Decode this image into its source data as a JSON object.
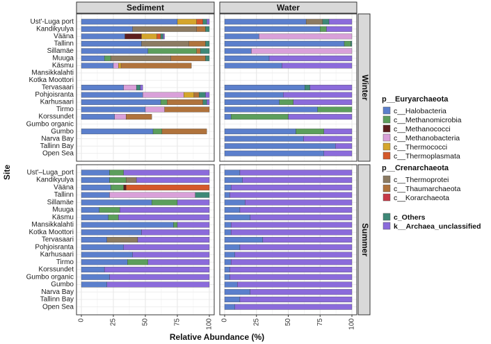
{
  "chart_data": {
    "type": "bar",
    "orientation": "horizontal",
    "stacked": true,
    "ylabel": "Site",
    "xlabel": "Relative Abundance (%)",
    "xlim": [
      0,
      100
    ],
    "xticks": [
      "0",
      "25",
      "50",
      "75",
      "100"
    ],
    "columns": [
      "Sediment",
      "Water"
    ],
    "rows": [
      "Winter",
      "Summer"
    ],
    "sites": [
      "Ust'-Luga port",
      "Kandikyulya",
      "Vääna",
      "Tallinn",
      "Sillamäe",
      "Muuga",
      "Käsmu",
      "Mansikkalahti",
      "Kotka Moottori",
      "Tervasaari",
      "Pohjoisranta",
      "Karhusaari",
      "Tirmo",
      "Korssundet",
      "Gumbo organic",
      "Gumbo",
      "Narva Bay",
      "Tallinn Bay",
      "Open Sea"
    ],
    "site_labels_summer_first": "Ust'–Luga_port",
    "taxa": [
      "Halobacteria",
      "Methanomicrobia",
      "Methanococci",
      "Methanobacteria",
      "Thermococci",
      "Thermoplasmata",
      "Thermoprotei",
      "Thaumarchaeota",
      "Korarchaeota",
      "Others",
      "Archaea_unclassified"
    ],
    "colors": [
      "#5B7FCC",
      "#5C9E5C",
      "#5E1E1E",
      "#D9A0D9",
      "#D4A52C",
      "#D4582A",
      "#8C7B62",
      "#B0733C",
      "#C83A48",
      "#3E8877",
      "#8B6BDB"
    ],
    "legend_groups": [
      {
        "title": "p__Euryarchaeota",
        "items": [
          {
            "label": "c__Halobacteria",
            "color_index": 0
          },
          {
            "label": "c__Methanomicrobia",
            "color_index": 1
          },
          {
            "label": "c__Methanococci",
            "color_index": 2
          },
          {
            "label": "c__Methanobacteria",
            "color_index": 3
          },
          {
            "label": "c__Thermococci",
            "color_index": 4
          },
          {
            "label": "c__Thermoplasmata",
            "color_index": 5
          }
        ]
      },
      {
        "title": "p__Crenarchaeota",
        "items": [
          {
            "label": "c__Thermoprotei",
            "color_index": 6
          },
          {
            "label": "c__Thaumarchaeota",
            "color_index": 7
          },
          {
            "label": "c__Korarchaeota",
            "color_index": 8
          }
        ]
      },
      {
        "title": "",
        "items": [
          {
            "label": "c_Others",
            "color_index": 9,
            "bold": true
          },
          {
            "label": "k__Archaea_unclassified",
            "color_index": 10,
            "bold": true
          }
        ]
      }
    ],
    "panels": {
      "Winter": {
        "Sediment": [
          [
            75,
            0,
            0,
            0,
            15,
            5,
            0,
            0,
            0,
            3,
            2
          ],
          [
            40,
            0,
            0,
            0,
            0,
            0,
            50,
            7,
            0,
            3,
            0
          ],
          [
            34,
            0,
            13,
            0,
            12,
            3,
            0,
            0,
            0,
            2,
            1
          ],
          [
            47,
            0,
            0,
            0,
            0,
            0,
            37,
            13,
            0,
            3,
            0
          ],
          [
            52,
            38,
            0,
            0,
            0,
            0,
            0,
            3,
            0,
            7,
            0
          ],
          [
            18,
            5,
            0,
            0,
            0,
            0,
            47,
            27,
            0,
            3,
            0
          ],
          [
            25,
            0,
            0,
            4,
            2,
            0,
            0,
            55,
            0,
            0,
            0
          ],
          [
            0,
            0,
            0,
            0,
            0,
            0,
            0,
            0,
            0,
            0,
            0
          ],
          [
            0,
            0,
            0,
            0,
            0,
            0,
            0,
            0,
            0,
            0,
            0
          ],
          [
            33,
            0,
            0,
            10,
            0,
            0,
            0,
            0,
            0,
            3,
            2
          ],
          [
            48,
            0,
            0,
            32,
            8,
            0,
            0,
            4,
            0,
            5,
            3
          ],
          [
            62,
            5,
            0,
            0,
            0,
            0,
            0,
            28,
            0,
            3,
            2
          ],
          [
            50,
            0,
            0,
            15,
            0,
            0,
            0,
            35,
            0,
            0,
            0
          ],
          [
            26,
            0,
            0,
            9,
            0,
            0,
            0,
            20,
            0,
            0,
            0
          ],
          [
            0,
            0,
            0,
            0,
            0,
            0,
            0,
            0,
            0,
            0,
            0
          ],
          [
            56,
            7,
            0,
            0,
            0,
            0,
            0,
            35,
            0,
            0,
            0
          ],
          [
            0,
            0,
            0,
            0,
            0,
            0,
            0,
            0,
            0,
            0,
            0
          ],
          [
            0,
            0,
            0,
            0,
            0,
            0,
            0,
            0,
            0,
            0,
            0
          ],
          [
            0,
            0,
            0,
            0,
            0,
            0,
            0,
            0,
            0,
            0,
            0
          ]
        ],
        "Water": [
          [
            64,
            0,
            0,
            0,
            0,
            0,
            13,
            0,
            0,
            5,
            18
          ],
          [
            75,
            5,
            0,
            0,
            0,
            0,
            0,
            0,
            0,
            0,
            20
          ],
          [
            27,
            0,
            0,
            73,
            0,
            0,
            0,
            0,
            0,
            0,
            0
          ],
          [
            94,
            5,
            0,
            0,
            0,
            0,
            0,
            0,
            0,
            1,
            0
          ],
          [
            21,
            0,
            0,
            79,
            0,
            0,
            0,
            0,
            0,
            0,
            0
          ],
          [
            35,
            0,
            0,
            0,
            0,
            0,
            0,
            0,
            0,
            0,
            65
          ],
          [
            45,
            0,
            0,
            0,
            0,
            0,
            0,
            0,
            0,
            0,
            55
          ],
          [
            0,
            0,
            0,
            0,
            0,
            0,
            0,
            0,
            0,
            0,
            0
          ],
          [
            0,
            0,
            0,
            0,
            0,
            0,
            0,
            0,
            0,
            0,
            0
          ],
          [
            63,
            0,
            0,
            0,
            0,
            0,
            0,
            0,
            0,
            4,
            33
          ],
          [
            46,
            0,
            0,
            0,
            0,
            0,
            0,
            0,
            0,
            0,
            54
          ],
          [
            43,
            11,
            0,
            0,
            0,
            0,
            0,
            0,
            0,
            0,
            46
          ],
          [
            73,
            27,
            0,
            0,
            0,
            0,
            0,
            0,
            0,
            0,
            0
          ],
          [
            5,
            45,
            0,
            0,
            0,
            0,
            0,
            0,
            0,
            0,
            50
          ],
          [
            0,
            0,
            0,
            0,
            0,
            0,
            0,
            0,
            0,
            0,
            0
          ],
          [
            56,
            22,
            0,
            0,
            0,
            0,
            0,
            0,
            0,
            0,
            22
          ],
          [
            62,
            0,
            0,
            0,
            0,
            0,
            0,
            0,
            0,
            0,
            38
          ],
          [
            87,
            0,
            0,
            0,
            0,
            0,
            0,
            0,
            0,
            0,
            13
          ],
          [
            78,
            0,
            0,
            0,
            0,
            0,
            0,
            0,
            0,
            0,
            22
          ]
        ]
      },
      "Summer": {
        "Sediment": [
          [
            22,
            11,
            0,
            0,
            0,
            0,
            0,
            0,
            0,
            0,
            67
          ],
          [
            22,
            13,
            0,
            0,
            0,
            0,
            8,
            0,
            0,
            0,
            57
          ],
          [
            23,
            10,
            2,
            0,
            0,
            65,
            0,
            0,
            0,
            0,
            0
          ],
          [
            22,
            0,
            0,
            67,
            0,
            0,
            0,
            0,
            0,
            11,
            0
          ],
          [
            55,
            20,
            0,
            0,
            0,
            0,
            0,
            0,
            0,
            0,
            25
          ],
          [
            14,
            16,
            0,
            0,
            0,
            0,
            0,
            0,
            0,
            0,
            70
          ],
          [
            21,
            8,
            0,
            0,
            0,
            0,
            0,
            0,
            0,
            0,
            71
          ],
          [
            72,
            3,
            0,
            0,
            0,
            0,
            0,
            0,
            0,
            0,
            25
          ],
          [
            47,
            0,
            0,
            0,
            0,
            0,
            0,
            0,
            0,
            0,
            53
          ],
          [
            20,
            0,
            0,
            0,
            0,
            0,
            24,
            0,
            0,
            0,
            56
          ],
          [
            33,
            0,
            0,
            0,
            0,
            0,
            0,
            0,
            0,
            0,
            67
          ],
          [
            40,
            0,
            0,
            0,
            0,
            0,
            0,
            0,
            0,
            0,
            60
          ],
          [
            36,
            16,
            0,
            0,
            0,
            0,
            0,
            0,
            0,
            0,
            48
          ],
          [
            18,
            0,
            0,
            0,
            0,
            0,
            0,
            0,
            0,
            0,
            82
          ],
          [
            22,
            0,
            0,
            0,
            0,
            0,
            0,
            0,
            0,
            0,
            78
          ],
          [
            20,
            0,
            0,
            0,
            0,
            0,
            0,
            0,
            0,
            0,
            80
          ],
          [
            0,
            0,
            0,
            0,
            0,
            0,
            0,
            0,
            0,
            0,
            0
          ],
          [
            0,
            0,
            0,
            0,
            0,
            0,
            0,
            0,
            0,
            0,
            0
          ],
          [
            0,
            0,
            0,
            0,
            0,
            0,
            0,
            0,
            0,
            0,
            0
          ]
        ],
        "Water": [
          [
            12,
            0,
            0,
            0,
            0,
            0,
            0,
            0,
            0,
            0,
            88
          ],
          [
            14,
            0,
            0,
            0,
            0,
            0,
            0,
            0,
            0,
            0,
            86
          ],
          [
            5,
            0,
            0,
            0,
            0,
            0,
            0,
            0,
            0,
            0,
            95
          ],
          [
            4,
            0,
            0,
            0,
            0,
            0,
            0,
            0,
            0,
            0,
            96
          ],
          [
            16,
            0,
            0,
            0,
            0,
            0,
            0,
            0,
            0,
            0,
            84
          ],
          [
            12,
            0,
            0,
            0,
            0,
            0,
            0,
            0,
            0,
            0,
            88
          ],
          [
            20,
            0,
            0,
            0,
            0,
            0,
            0,
            0,
            0,
            0,
            80
          ],
          [
            5,
            0,
            0,
            0,
            0,
            0,
            0,
            0,
            0,
            0,
            95
          ],
          [
            5,
            0,
            0,
            0,
            0,
            0,
            0,
            0,
            0,
            0,
            95
          ],
          [
            30,
            0,
            0,
            0,
            0,
            0,
            0,
            0,
            0,
            0,
            70
          ],
          [
            12,
            0,
            0,
            0,
            0,
            0,
            0,
            0,
            0,
            0,
            88
          ],
          [
            8,
            0,
            0,
            0,
            0,
            0,
            0,
            0,
            0,
            0,
            92
          ],
          [
            5,
            0,
            0,
            0,
            0,
            0,
            0,
            0,
            0,
            0,
            95
          ],
          [
            4,
            0,
            0,
            0,
            0,
            0,
            0,
            0,
            0,
            0,
            96
          ],
          [
            4,
            0,
            0,
            0,
            0,
            0,
            0,
            0,
            0,
            0,
            96
          ],
          [
            10,
            0,
            0,
            0,
            0,
            0,
            0,
            0,
            0,
            0,
            90
          ],
          [
            20,
            0,
            0,
            0,
            0,
            0,
            0,
            0,
            0,
            0,
            80
          ],
          [
            12,
            0,
            0,
            0,
            0,
            0,
            0,
            0,
            0,
            0,
            88
          ],
          [
            8,
            0,
            0,
            0,
            0,
            0,
            0,
            0,
            0,
            0,
            92
          ]
        ]
      }
    }
  }
}
